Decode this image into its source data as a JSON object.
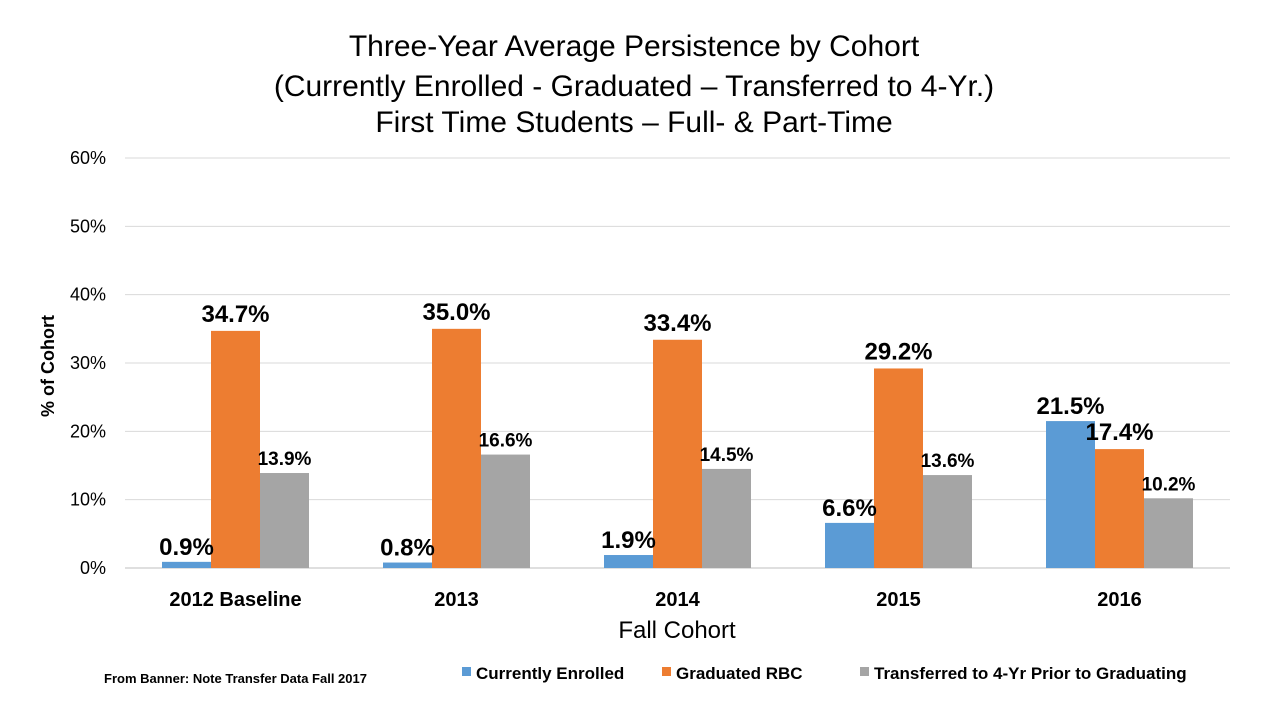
{
  "chart_data": {
    "type": "bar",
    "title": [
      "Three-Year Average Persistence by Cohort",
      "(Currently Enrolled - Graduated – Transferred to 4-Yr.)",
      "First Time Students – Full- & Part-Time"
    ],
    "xlabel": "Fall Cohort",
    "ylabel": "% of Cohort",
    "ylim": [
      0,
      60
    ],
    "yticks": [
      0,
      10,
      20,
      30,
      40,
      50,
      60
    ],
    "ytick_suffix": "%",
    "grid": true,
    "legend_position": "bottom-right",
    "categories": [
      "2012 Baseline",
      "2013",
      "2014",
      "2015",
      "2016"
    ],
    "series": [
      {
        "name": "Currently Enrolled",
        "color": "#5b9bd5",
        "values": [
          0.9,
          0.8,
          1.9,
          6.6,
          21.5
        ],
        "labels": [
          "0.9%",
          "0.8%",
          "1.9%",
          "6.6%",
          "21.5%"
        ]
      },
      {
        "name": "Graduated RBC",
        "color": "#ed7d31",
        "values": [
          34.7,
          35.0,
          33.4,
          29.2,
          17.4
        ],
        "labels": [
          "34.7%",
          "35.0%",
          "33.4%",
          "29.2%",
          "17.4%"
        ]
      },
      {
        "name": "Transferred to 4-Yr Prior to Graduating",
        "color": "#a5a5a5",
        "values": [
          13.9,
          16.6,
          14.5,
          13.6,
          10.2
        ],
        "labels": [
          "13.9%",
          "16.6%",
          "14.5%",
          "13.6%",
          "10.2%"
        ]
      }
    ],
    "footnote": "From Banner: Note Transfer Data Fall 2017"
  }
}
